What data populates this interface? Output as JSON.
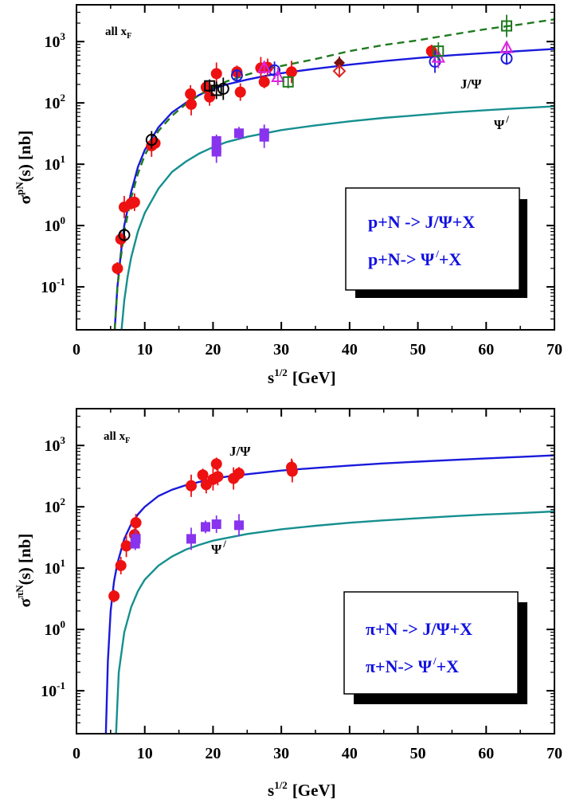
{
  "chart_data": [
    {
      "type": "line",
      "panel": "top",
      "xlabel": "s",
      "xlabel_sup": "1/2",
      "xlabel_unit": "[GeV]",
      "ylabel": "σ",
      "ylabel_sup": "pN",
      "ylabel_suffix": "(s)  [nb]",
      "xlim": [
        0,
        70
      ],
      "ylim_log10": [
        -1.7,
        3.6
      ],
      "xscale": "linear",
      "yscale": "log",
      "x_ticks": [
        "0",
        "10",
        "20",
        "30",
        "40",
        "50",
        "60",
        "70"
      ],
      "y_ticks": [
        {
          "base": "10",
          "exp": "-1"
        },
        {
          "base": "10",
          "exp": "0"
        },
        {
          "base": "10",
          "exp": "1"
        },
        {
          "base": "10",
          "exp": "2"
        },
        {
          "base": "10",
          "exp": "3"
        }
      ],
      "corner_label": {
        "main": "all x",
        "sub": "F"
      },
      "curve_labels": [
        {
          "text": "J/Ψ",
          "sup": ""
        },
        {
          "text": "Ψ",
          "sup": "/"
        }
      ],
      "legend": {
        "placement": "lower-right",
        "entries": [
          {
            "text": "p+N -> J/Ψ+X",
            "sup": ""
          },
          {
            "text": "p+N-> Ψ",
            "sup": "/",
            "tail": "+X"
          }
        ]
      },
      "series": [
        {
          "name": "J/Ψ fit",
          "style": "solid",
          "color": "#1a1adc",
          "x": [
            5.6,
            6,
            6.5,
            7,
            8,
            9,
            10,
            12,
            14,
            16,
            18,
            20,
            22,
            25,
            28,
            30,
            35,
            40,
            45,
            50,
            55,
            60,
            65,
            70
          ],
          "y": [
            0.02,
            0.1,
            0.35,
            1.0,
            3.5,
            9,
            17,
            40,
            70,
            100,
            135,
            170,
            200,
            240,
            280,
            305,
            360,
            420,
            480,
            540,
            600,
            650,
            700,
            760
          ]
        },
        {
          "name": "J/Ψ alt",
          "style": "dashed",
          "color": "#1f7a1f",
          "x": [
            5.6,
            6,
            6.5,
            7,
            8,
            9,
            10,
            12,
            14,
            16,
            18,
            20,
            22,
            25,
            28,
            30,
            35,
            40,
            45,
            50,
            55,
            60,
            65,
            70
          ],
          "y": [
            0.02,
            0.1,
            0.3,
            0.8,
            2.8,
            7,
            14,
            35,
            62,
            95,
            135,
            180,
            225,
            290,
            360,
            400,
            520,
            700,
            880,
            1050,
            1300,
            1600,
            1900,
            2300
          ]
        },
        {
          "name": "Ψ' fit",
          "style": "solid",
          "color": "#168f8f",
          "x": [
            6.6,
            7,
            7.5,
            8,
            9,
            10,
            12,
            14,
            16,
            18,
            20,
            22,
            25,
            30,
            35,
            40,
            45,
            50,
            55,
            60,
            65,
            70
          ],
          "y": [
            0.02,
            0.06,
            0.15,
            0.3,
            0.8,
            1.6,
            4,
            7.5,
            11,
            15,
            19,
            23,
            28,
            36,
            43,
            50,
            57,
            63,
            70,
            76,
            82,
            88
          ]
        },
        {
          "name": "J/Ψ data (filled circles)",
          "marker": "circle-filled",
          "color": "#ee1111",
          "x": [
            6,
            6.5,
            7,
            8,
            8.5,
            11,
            11.5,
            16.7,
            16.8,
            19,
            19.5,
            20.5,
            23.5,
            24,
            27,
            27.5,
            28,
            31.5,
            52
          ],
          "y": [
            0.2,
            0.6,
            2,
            2.3,
            2.4,
            20,
            22,
            140,
            95,
            180,
            125,
            300,
            320,
            150,
            370,
            220,
            380,
            320,
            700
          ]
        },
        {
          "name": "data (black open squares)",
          "marker": "square-open",
          "color": "#000000",
          "x": [
            19.5,
            20.5
          ],
          "y": [
            190,
            160
          ]
        },
        {
          "name": "data (black open circles)",
          "marker": "circle-open",
          "color": "#000000",
          "x": [
            7,
            11,
            21.5
          ],
          "y": [
            0.7,
            25,
            170
          ]
        },
        {
          "name": "data (blue open circles)",
          "marker": "circle-open",
          "color": "#1a1adc",
          "x": [
            23.5,
            29,
            52.5,
            63
          ],
          "y": [
            280,
            340,
            470,
            530
          ]
        },
        {
          "name": "data (magenta open triangles)",
          "marker": "triangle-open",
          "color": "#dd22dd",
          "x": [
            27.5,
            29.5,
            53,
            63
          ],
          "y": [
            380,
            270,
            560,
            800
          ]
        },
        {
          "name": "data (green open squares)",
          "marker": "square-open",
          "color": "#1f7a1f",
          "x": [
            31,
            53,
            63
          ],
          "y": [
            220,
            700,
            1800
          ]
        },
        {
          "name": "data (dark red filled diamond)",
          "marker": "diamond-filled",
          "color": "#7a1010",
          "x": [
            38.5
          ],
          "y": [
            450
          ]
        },
        {
          "name": "data (red open diamond)",
          "marker": "diamond-open",
          "color": "#dd2222",
          "x": [
            38.5
          ],
          "y": [
            330
          ]
        },
        {
          "name": "Ψ' data (filled squares)",
          "marker": "square-filled",
          "color": "#8833ee",
          "x": [
            20.5,
            20.5,
            20.5,
            23.8,
            27.5,
            27.5
          ],
          "y": [
            24,
            18,
            16,
            32,
            32,
            28
          ]
        }
      ]
    },
    {
      "type": "line",
      "panel": "bottom",
      "xlabel": "s",
      "xlabel_sup": "1/2",
      "xlabel_unit": "[GeV]",
      "ylabel": "σ",
      "ylabel_sup": "πN",
      "ylabel_suffix": "(s)  [nb]",
      "xlim": [
        0,
        70
      ],
      "ylim_log10": [
        -1.7,
        3.6
      ],
      "xscale": "linear",
      "yscale": "log",
      "x_ticks": [
        "0",
        "10",
        "20",
        "30",
        "40",
        "50",
        "60",
        "70"
      ],
      "y_ticks": [
        {
          "base": "10",
          "exp": "-1"
        },
        {
          "base": "10",
          "exp": "0"
        },
        {
          "base": "10",
          "exp": "1"
        },
        {
          "base": "10",
          "exp": "2"
        },
        {
          "base": "10",
          "exp": "3"
        }
      ],
      "corner_label": {
        "main": "all x",
        "sub": "F"
      },
      "curve_labels": [
        {
          "text": "J/Ψ",
          "sup": ""
        },
        {
          "text": "Ψ",
          "sup": "/"
        }
      ],
      "legend": {
        "placement": "lower-right",
        "entries": [
          {
            "text": "π+N -> J/Ψ+X",
            "sup": ""
          },
          {
            "text": "π+N-> Ψ",
            "sup": "/",
            "tail": "+X"
          }
        ]
      },
      "series": [
        {
          "name": "J/Ψ fit",
          "style": "solid",
          "color": "#1a1adc",
          "x": [
            4.3,
            4.6,
            5,
            5.5,
            6,
            7,
            8,
            9,
            10,
            12,
            14,
            16,
            18,
            20,
            22,
            25,
            30,
            35,
            40,
            45,
            50,
            55,
            60,
            65,
            70
          ],
          "y": [
            0.02,
            0.3,
            2,
            6,
            12,
            30,
            52,
            75,
            100,
            150,
            190,
            225,
            255,
            285,
            310,
            340,
            390,
            430,
            470,
            510,
            545,
            580,
            615,
            650,
            690
          ]
        },
        {
          "name": "Ψ' fit",
          "style": "solid",
          "color": "#168f8f",
          "x": [
            5.8,
            6.2,
            7,
            8,
            9,
            10,
            12,
            14,
            16,
            18,
            20,
            22,
            25,
            30,
            35,
            40,
            45,
            50,
            55,
            60,
            65,
            70
          ],
          "y": [
            0.02,
            0.2,
            0.9,
            2.3,
            4.2,
            6.5,
            11,
            15.5,
            20,
            24,
            28,
            31,
            36,
            43,
            49,
            55,
            60,
            65,
            70,
            75,
            79,
            84
          ]
        },
        {
          "name": "J/Ψ data (filled circles)",
          "marker": "circle-filled",
          "color": "#ee1111",
          "x": [
            5.5,
            6.5,
            7.3,
            8.5,
            8.7,
            16.8,
            18.5,
            19,
            20,
            20.5,
            20.7,
            23,
            23.8,
            31.5,
            31.6
          ],
          "y": [
            3.5,
            11,
            23,
            35,
            55,
            220,
            330,
            230,
            280,
            500,
            310,
            290,
            350,
            440,
            380
          ]
        },
        {
          "name": "Ψ' data (filled squares)",
          "marker": "square-filled",
          "color": "#8833ee",
          "x": [
            8.6,
            8.7,
            16.8,
            18.9,
            20.5,
            23.8
          ],
          "y": [
            25,
            30,
            30,
            47,
            52,
            50
          ]
        }
      ]
    }
  ]
}
